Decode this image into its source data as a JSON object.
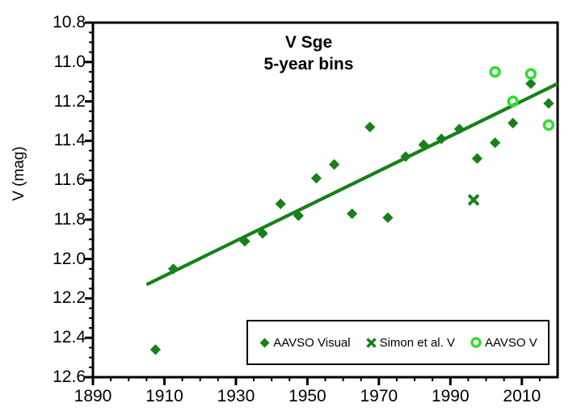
{
  "title": {
    "line1": "V Sge",
    "line2": "5-year bins"
  },
  "y_axis": {
    "label": "V (mag)",
    "tick_labels": [
      "10.8",
      "11.0",
      "11.2",
      "11.4",
      "11.6",
      "11.8",
      "12.0",
      "12.2",
      "12.4",
      "12.6"
    ]
  },
  "x_axis": {
    "tick_labels": [
      "1890",
      "1910",
      "1930",
      "1950",
      "1970",
      "1990",
      "2010"
    ]
  },
  "colors": {
    "dark_green": "#17801A",
    "bright_green": "#33DC33",
    "axis": "#000000",
    "background": "#FFFFFF"
  },
  "legend": {
    "items": [
      {
        "label": "AAVSO Visual",
        "marker": "diamond"
      },
      {
        "label": "Simon et al. V",
        "marker": "x-cross"
      },
      {
        "label": "AAVSO V",
        "marker": "open-circle"
      }
    ]
  },
  "chart_data": {
    "type": "scatter",
    "title": "V Sge 5-year bins",
    "xlabel": "",
    "ylabel": "V (mag)",
    "xlim": [
      1890,
      2020
    ],
    "ylim": [
      12.6,
      10.8
    ],
    "y_axis_inverted": true,
    "x_major_step": 20,
    "x_minor_step": 5,
    "y_major_step": 0.2,
    "y_minor_step": 0.05,
    "grid": false,
    "legend_position": "inside-bottom-right",
    "series": [
      {
        "name": "AAVSO Visual",
        "marker": "diamond",
        "color_key": "dark_green",
        "points": [
          [
            1907.5,
            12.46
          ],
          [
            1912.5,
            12.05
          ],
          [
            1932.5,
            11.91
          ],
          [
            1937.5,
            11.87
          ],
          [
            1942.5,
            11.72
          ],
          [
            1947.5,
            11.78
          ],
          [
            1952.5,
            11.59
          ],
          [
            1957.5,
            11.52
          ],
          [
            1962.5,
            11.77
          ],
          [
            1967.5,
            11.33
          ],
          [
            1972.5,
            11.79
          ],
          [
            1977.5,
            11.48
          ],
          [
            1982.5,
            11.42
          ],
          [
            1987.5,
            11.39
          ],
          [
            1992.5,
            11.34
          ],
          [
            1997.5,
            11.49
          ],
          [
            2002.5,
            11.41
          ],
          [
            2007.5,
            11.31
          ],
          [
            2012.5,
            11.11
          ],
          [
            2017.5,
            11.21
          ]
        ]
      },
      {
        "name": "Simon et al. V",
        "marker": "x-cross",
        "color_key": "dark_green",
        "points": [
          [
            1996.5,
            11.7
          ]
        ]
      },
      {
        "name": "AAVSO V",
        "marker": "open-circle",
        "color_key": "bright_green",
        "points": [
          [
            2002.5,
            11.05
          ],
          [
            2007.5,
            11.2
          ],
          [
            2012.5,
            11.06
          ],
          [
            2017.5,
            11.32
          ]
        ]
      }
    ],
    "trend_line": {
      "color_key": "dark_green",
      "from": [
        1905,
        12.13
      ],
      "to": [
        2020,
        11.11
      ]
    }
  }
}
